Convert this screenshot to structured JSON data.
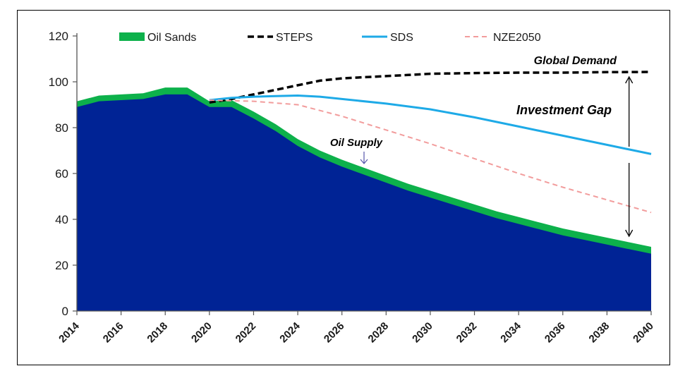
{
  "chart_data": {
    "type": "area",
    "xlim": [
      2014,
      2040
    ],
    "ylim": [
      0,
      120
    ],
    "x_ticks": [
      2014,
      2016,
      2018,
      2020,
      2022,
      2024,
      2026,
      2028,
      2030,
      2032,
      2034,
      2036,
      2038,
      2040
    ],
    "y_ticks": [
      0,
      20,
      40,
      60,
      80,
      100,
      120
    ],
    "grid": false,
    "legend_position": "top",
    "oil_supply": {
      "color": "#002395",
      "x": [
        2014,
        2015,
        2016,
        2017,
        2018,
        2019,
        2020,
        2021,
        2022,
        2023,
        2024,
        2025,
        2026,
        2027,
        2028,
        2029,
        2030,
        2031,
        2032,
        2033,
        2034,
        2035,
        2036,
        2037,
        2038,
        2039,
        2040
      ],
      "y": [
        89,
        91.5,
        92,
        92.5,
        94.5,
        94.5,
        89,
        89,
        84,
        78.5,
        72,
        67,
        63,
        59.5,
        56,
        52.5,
        49.5,
        46.5,
        43.5,
        40.5,
        38,
        35.5,
        33,
        31,
        29,
        27,
        25
      ]
    },
    "series": [
      {
        "name": "Oil Sands",
        "style": "area",
        "color": "#0db14b",
        "x": [
          2014,
          2015,
          2016,
          2017,
          2018,
          2019,
          2020,
          2021,
          2022,
          2023,
          2024,
          2025,
          2026,
          2027,
          2028,
          2029,
          2030,
          2031,
          2032,
          2033,
          2034,
          2035,
          2036,
          2037,
          2038,
          2039,
          2040
        ],
        "y": [
          91.5,
          94,
          94.5,
          95,
          97.5,
          97.5,
          91.5,
          92,
          87,
          81.5,
          75,
          70,
          66,
          62.5,
          59,
          55.5,
          52.5,
          49.5,
          46.5,
          43.5,
          41,
          38.5,
          36,
          34,
          32,
          30,
          28
        ]
      },
      {
        "name": "STEPS",
        "style": "dashed",
        "color": "#000000",
        "x": [
          2020,
          2021,
          2022,
          2023,
          2024,
          2025,
          2026,
          2027,
          2028,
          2029,
          2030,
          2032,
          2034,
          2036,
          2038,
          2040
        ],
        "y": [
          91,
          92.5,
          94.5,
          96.5,
          98.5,
          100.5,
          101.5,
          102,
          102.5,
          103,
          103.5,
          103.8,
          104,
          104,
          104.2,
          104.3
        ]
      },
      {
        "name": "SDS",
        "style": "solid",
        "color": "#1eaae7",
        "x": [
          2020,
          2021,
          2022,
          2023,
          2024,
          2025,
          2026,
          2028,
          2030,
          2032,
          2034,
          2036,
          2038,
          2040
        ],
        "y": [
          92,
          93,
          93.5,
          93.8,
          94,
          93.5,
          92.5,
          90.5,
          88,
          84.5,
          80.5,
          76.5,
          72.5,
          68.5
        ]
      },
      {
        "name": "NZE2050",
        "style": "dashed",
        "color": "#f29c9c",
        "x": [
          2020,
          2022,
          2024,
          2026,
          2028,
          2030,
          2032,
          2034,
          2036,
          2038,
          2040
        ],
        "y": [
          92,
          91.5,
          90,
          85,
          79,
          73,
          66.5,
          60,
          54,
          48.5,
          43
        ]
      }
    ],
    "annotations": {
      "global_demand": "Global Demand",
      "investment_gap": "Investment Gap",
      "oil_supply": "Oil Supply"
    }
  }
}
